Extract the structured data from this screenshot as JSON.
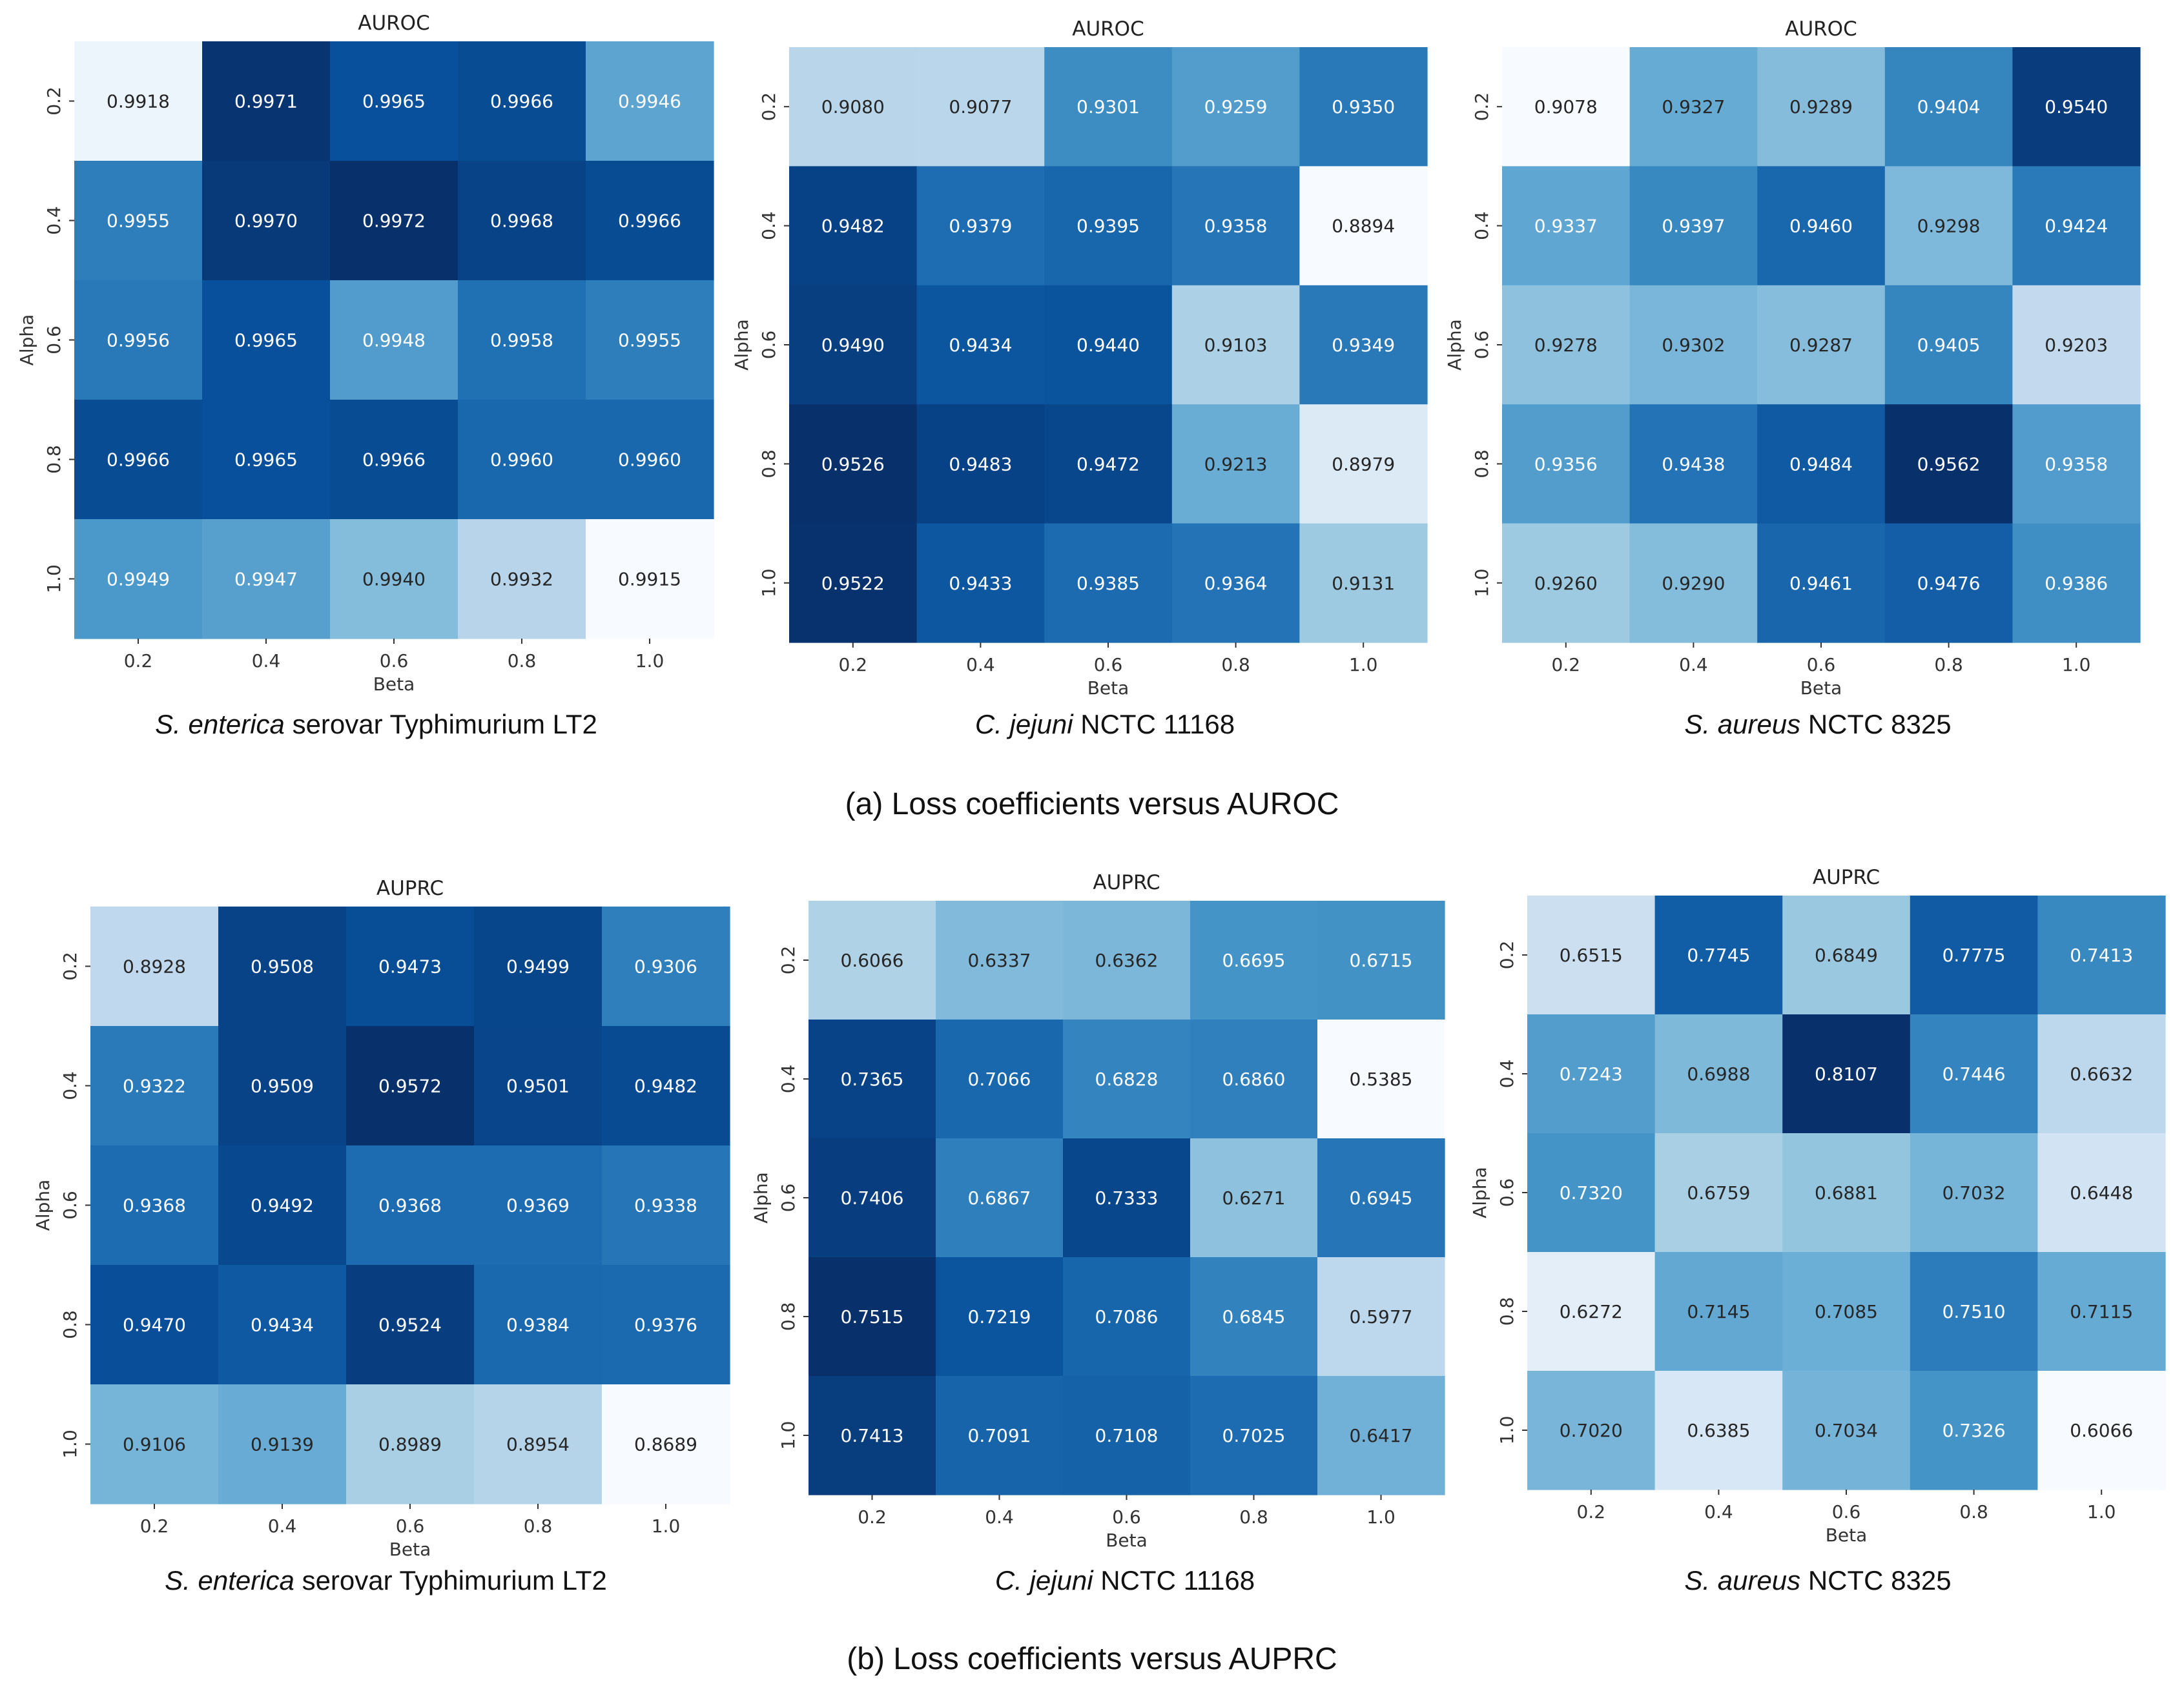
{
  "colors": {
    "scale_low": "#f7fbff",
    "scale_high": "#08306b"
  },
  "axis": {
    "xlabel": "Beta",
    "ylabel": "Alpha",
    "xticks": [
      "0.2",
      "0.4",
      "0.6",
      "0.8",
      "1.0"
    ],
    "yticks": [
      "0.2",
      "0.4",
      "0.6",
      "0.8",
      "1.0"
    ]
  },
  "rows": [
    {
      "caption": "(a) Loss  coefficients versus AUROC"
    },
    {
      "caption": "(b) Loss  coefficients versus AUPRC"
    }
  ],
  "panels": [
    {
      "caption_italic": "S. enterica",
      "caption_rest": " serovar Typhimurium LT2"
    },
    {
      "caption_italic": "C. jejuni",
      "caption_rest": " NCTC 11168"
    },
    {
      "caption_italic": "S. aureus",
      "caption_rest": " NCTC 8325"
    },
    {
      "caption_italic": "S. enterica",
      "caption_rest": " serovar Typhimurium LT2"
    },
    {
      "caption_italic": "C. jejuni",
      "caption_rest": " NCTC 11168"
    },
    {
      "caption_italic": "S. aureus",
      "caption_rest": " NCTC 8325"
    }
  ],
  "chart_data": [
    {
      "type": "heatmap",
      "title": "AUROC",
      "xlabel": "Beta",
      "ylabel": "Alpha",
      "x": [
        "0.2",
        "0.4",
        "0.6",
        "0.8",
        "1.0"
      ],
      "y": [
        "0.2",
        "0.4",
        "0.6",
        "0.8",
        "1.0"
      ],
      "values": [
        [
          "0.9918",
          "0.9971",
          "0.9965",
          "0.9966",
          "0.9946"
        ],
        [
          "0.9955",
          "0.9970",
          "0.9972",
          "0.9968",
          "0.9966"
        ],
        [
          "0.9956",
          "0.9965",
          "0.9948",
          "0.9958",
          "0.9955"
        ],
        [
          "0.9966",
          "0.9965",
          "0.9966",
          "0.9960",
          "0.9960"
        ],
        [
          "0.9949",
          "0.9947",
          "0.9940",
          "0.9932",
          "0.9915"
        ]
      ]
    },
    {
      "type": "heatmap",
      "title": "AUROC",
      "xlabel": "Beta",
      "ylabel": "Alpha",
      "x": [
        "0.2",
        "0.4",
        "0.6",
        "0.8",
        "1.0"
      ],
      "y": [
        "0.2",
        "0.4",
        "0.6",
        "0.8",
        "1.0"
      ],
      "values": [
        [
          "0.9080",
          "0.9077",
          "0.9301",
          "0.9259",
          "0.9350"
        ],
        [
          "0.9482",
          "0.9379",
          "0.9395",
          "0.9358",
          "0.8894"
        ],
        [
          "0.9490",
          "0.9434",
          "0.9440",
          "0.9103",
          "0.9349"
        ],
        [
          "0.9526",
          "0.9483",
          "0.9472",
          "0.9213",
          "0.8979"
        ],
        [
          "0.9522",
          "0.9433",
          "0.9385",
          "0.9364",
          "0.9131"
        ]
      ]
    },
    {
      "type": "heatmap",
      "title": "AUROC",
      "xlabel": "Beta",
      "ylabel": "Alpha",
      "x": [
        "0.2",
        "0.4",
        "0.6",
        "0.8",
        "1.0"
      ],
      "y": [
        "0.2",
        "0.4",
        "0.6",
        "0.8",
        "1.0"
      ],
      "values": [
        [
          "0.9078",
          "0.9327",
          "0.9289",
          "0.9404",
          "0.9540"
        ],
        [
          "0.9337",
          "0.9397",
          "0.9460",
          "0.9298",
          "0.9424"
        ],
        [
          "0.9278",
          "0.9302",
          "0.9287",
          "0.9405",
          "0.9203"
        ],
        [
          "0.9356",
          "0.9438",
          "0.9484",
          "0.9562",
          "0.9358"
        ],
        [
          "0.9260",
          "0.9290",
          "0.9461",
          "0.9476",
          "0.9386"
        ]
      ]
    },
    {
      "type": "heatmap",
      "title": "AUPRC",
      "xlabel": "Beta",
      "ylabel": "Alpha",
      "x": [
        "0.2",
        "0.4",
        "0.6",
        "0.8",
        "1.0"
      ],
      "y": [
        "0.2",
        "0.4",
        "0.6",
        "0.8",
        "1.0"
      ],
      "values": [
        [
          "0.8928",
          "0.9508",
          "0.9473",
          "0.9499",
          "0.9306"
        ],
        [
          "0.9322",
          "0.9509",
          "0.9572",
          "0.9501",
          "0.9482"
        ],
        [
          "0.9368",
          "0.9492",
          "0.9368",
          "0.9369",
          "0.9338"
        ],
        [
          "0.9470",
          "0.9434",
          "0.9524",
          "0.9384",
          "0.9376"
        ],
        [
          "0.9106",
          "0.9139",
          "0.8989",
          "0.8954",
          "0.8689"
        ]
      ]
    },
    {
      "type": "heatmap",
      "title": "AUPRC",
      "xlabel": "Beta",
      "ylabel": "Alpha",
      "x": [
        "0.2",
        "0.4",
        "0.6",
        "0.8",
        "1.0"
      ],
      "y": [
        "0.2",
        "0.4",
        "0.6",
        "0.8",
        "1.0"
      ],
      "values": [
        [
          "0.6066",
          "0.6337",
          "0.6362",
          "0.6695",
          "0.6715"
        ],
        [
          "0.7365",
          "0.7066",
          "0.6828",
          "0.6860",
          "0.5385"
        ],
        [
          "0.7406",
          "0.6867",
          "0.7333",
          "0.6271",
          "0.6945"
        ],
        [
          "0.7515",
          "0.7219",
          "0.7086",
          "0.6845",
          "0.5977"
        ],
        [
          "0.7413",
          "0.7091",
          "0.7108",
          "0.7025",
          "0.6417"
        ]
      ]
    },
    {
      "type": "heatmap",
      "title": "AUPRC",
      "xlabel": "Beta",
      "ylabel": "Alpha",
      "x": [
        "0.2",
        "0.4",
        "0.6",
        "0.8",
        "1.0"
      ],
      "y": [
        "0.2",
        "0.4",
        "0.6",
        "0.8",
        "1.0"
      ],
      "values": [
        [
          "0.6515",
          "0.7745",
          "0.6849",
          "0.7775",
          "0.7413"
        ],
        [
          "0.7243",
          "0.6988",
          "0.8107",
          "0.7446",
          "0.6632"
        ],
        [
          "0.7320",
          "0.6759",
          "0.6881",
          "0.7032",
          "0.6448"
        ],
        [
          "0.6272",
          "0.7145",
          "0.7085",
          "0.7510",
          "0.7115"
        ],
        [
          "0.7020",
          "0.6385",
          "0.7034",
          "0.7326",
          "0.6066"
        ]
      ]
    }
  ]
}
